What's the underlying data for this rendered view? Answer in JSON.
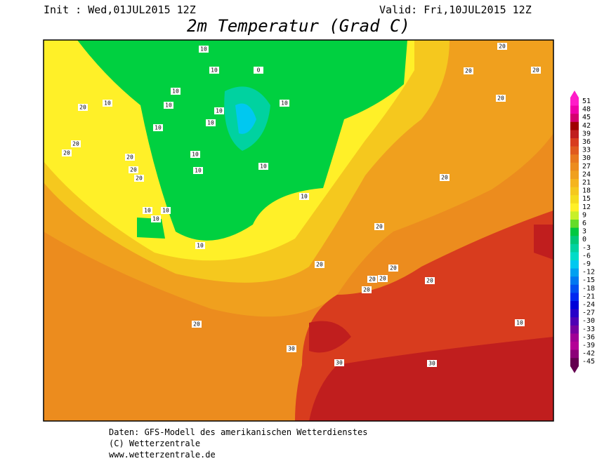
{
  "header": {
    "init": "Init : Wed,01JUL2015 12Z",
    "valid": "Valid: Fri,10JUL2015 12Z",
    "title": "2m Temperatur (Grad C)"
  },
  "legend": {
    "values": [
      51,
      48,
      45,
      42,
      39,
      36,
      33,
      30,
      27,
      24,
      21,
      18,
      15,
      12,
      9,
      6,
      3,
      0,
      -3,
      -6,
      -9,
      -12,
      -15,
      -18,
      -21,
      -24,
      -27,
      -30,
      -33,
      -36,
      -39,
      -42,
      -45
    ]
  },
  "map": {
    "contour_labels": [
      10,
      10,
      10,
      10,
      0,
      10,
      10,
      10,
      10,
      10,
      10,
      10,
      10,
      10,
      10,
      10,
      10,
      20,
      20,
      20,
      20,
      20,
      20,
      20,
      20,
      20,
      20,
      20,
      20,
      20,
      20,
      20,
      20,
      20,
      20,
      20,
      30,
      30,
      30,
      10,
      10
    ]
  },
  "footer": {
    "lines": [
      "Daten: GFS-Modell des amerikanischen Wetterdienstes",
      "(C) Wetterzentrale",
      "www.wetterzentrale.de"
    ]
  }
}
